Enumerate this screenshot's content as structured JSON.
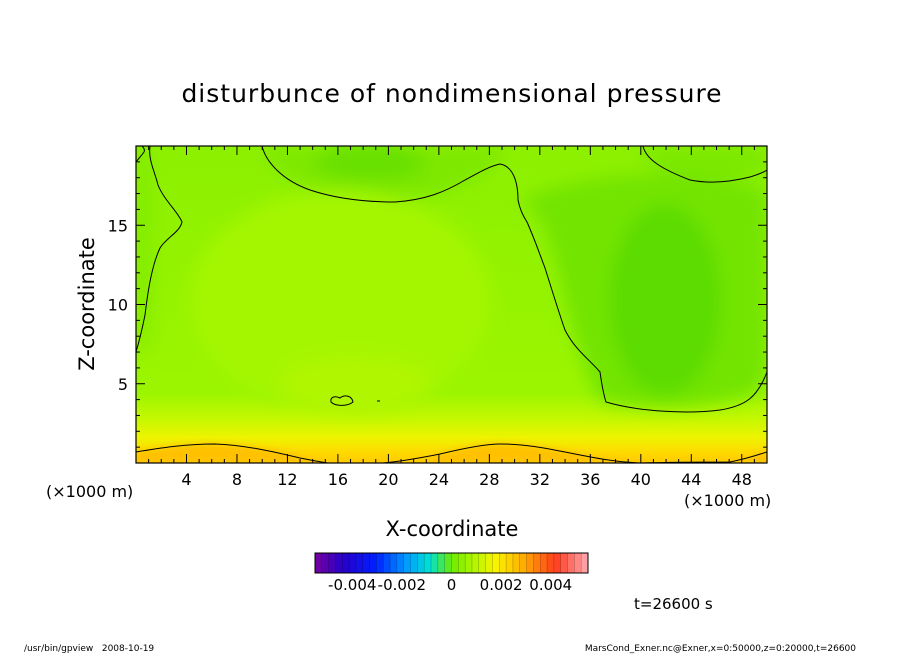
{
  "chart_data": {
    "type": "heatmap",
    "title": "disturbunce of nondimensional pressure",
    "xlabel": "X-coordinate",
    "ylabel": "Z-coordinate",
    "x_unit": "(×1000 m)",
    "y_unit": "(×1000 m)",
    "xlim": [
      0,
      50
    ],
    "ylim": [
      0,
      20
    ],
    "x_ticks": [
      "4",
      "8",
      "12",
      "16",
      "20",
      "24",
      "28",
      "32",
      "36",
      "40",
      "44",
      "48"
    ],
    "y_ticks": [
      "5",
      "10",
      "15"
    ],
    "x_tick_values": [
      4,
      8,
      12,
      16,
      20,
      24,
      28,
      32,
      36,
      40,
      44,
      48
    ],
    "y_tick_values": [
      5,
      10,
      15
    ],
    "colorbar": {
      "range": [
        -0.0055,
        0.0055
      ],
      "tick_labels": [
        "-0.004",
        "-0.002",
        "0",
        "0.002",
        "0.004"
      ],
      "tick_values": [
        -0.004,
        -0.002,
        0,
        0.002,
        0.004
      ]
    },
    "time_label": "t=26600 s",
    "field_summary": [
      {
        "region": "bottom boundary (z < 1)",
        "value": 0.0025
      },
      {
        "region": "lower layer (z 1-3)",
        "value": 0.0012
      },
      {
        "region": "interior",
        "value": 0.0004
      },
      {
        "region": "top centre (x 16-22, z 17-20)",
        "value": -0.0002
      },
      {
        "region": "right column (x 37-48, z 4-17)",
        "value": -0.0003
      }
    ]
  },
  "footer": {
    "left": "/usr/bin/gpview   2008-10-19",
    "right": "MarsCond_Exner.nc@Exner,x=0:50000,z=0:20000,t=26600"
  }
}
